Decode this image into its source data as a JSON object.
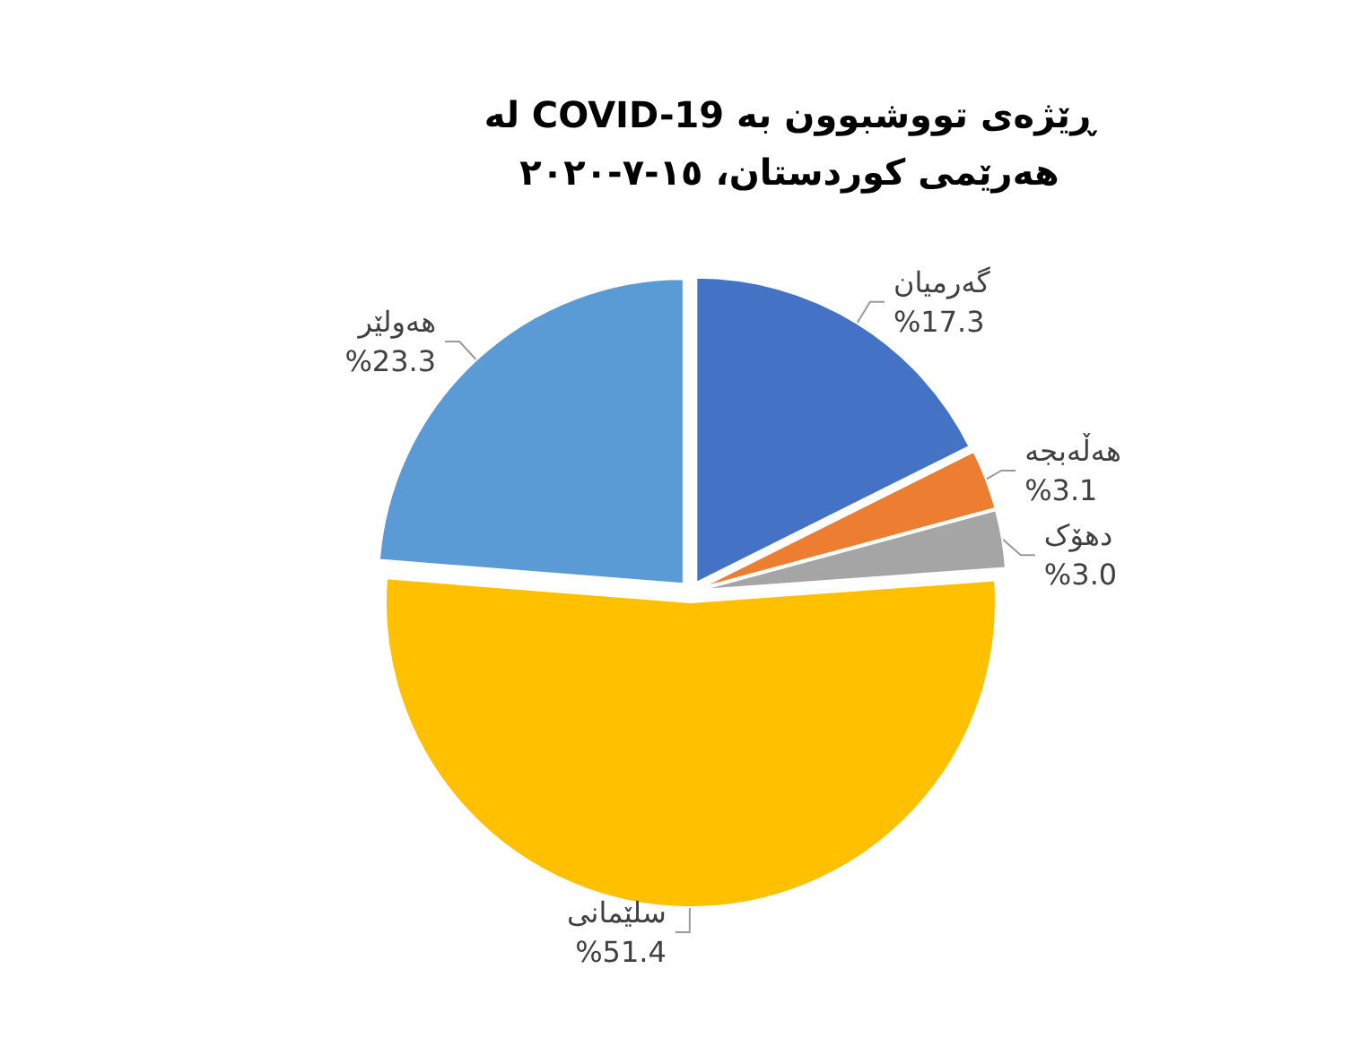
{
  "chart_data": {
    "type": "pie",
    "title": "ڕێژەی تووشبوون بە COVID-19 لە هەرێمی کوردستان، ١٥-٧-٢٠٢٠",
    "categories": [
      "گەرمیان",
      "هەڵەبجە",
      "دهۆک",
      "سلێمانی",
      "هەولێر"
    ],
    "values": [
      17.3,
      3.1,
      3.0,
      51.4,
      23.3
    ],
    "value_labels": [
      "%17.3",
      "%3.1",
      "%3.0",
      "%51.4",
      "%23.3"
    ],
    "colors": [
      "#4472c4",
      "#ed7d31",
      "#a5a5a5",
      "#ffc000",
      "#5b9bd5"
    ],
    "legend": false
  }
}
